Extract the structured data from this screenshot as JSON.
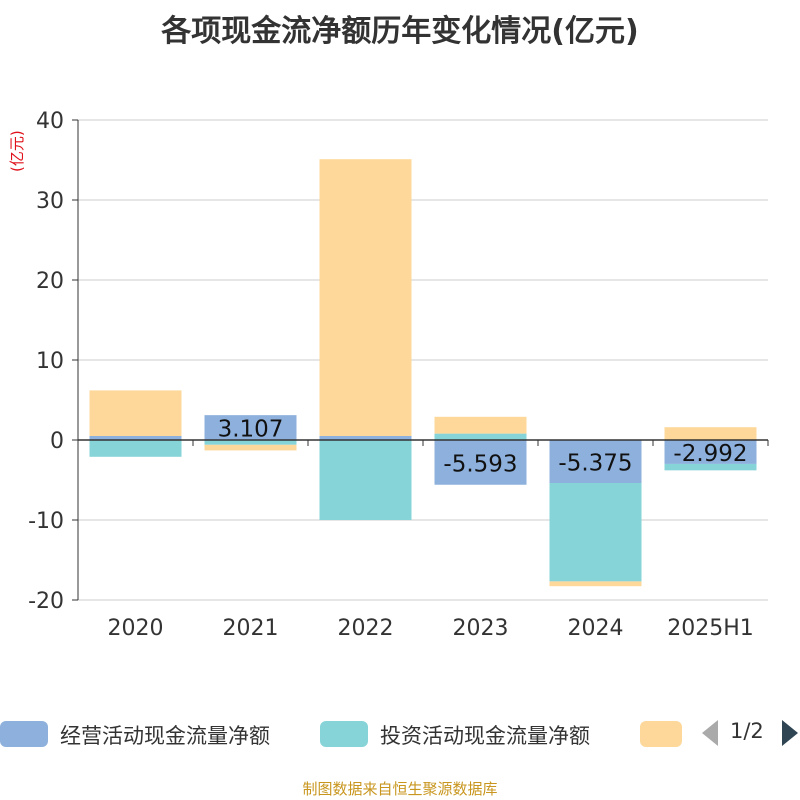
{
  "title": "各项现金流净额历年变化情况(亿元)",
  "unit_label": "(亿元)",
  "source": "制图数据来自恒生聚源数据库",
  "legend": {
    "items": [
      {
        "label": "经营活动现金流量净额",
        "color": "#8eb0dc"
      },
      {
        "label": "投资活动现金流量净额",
        "color": "#86d4d8"
      },
      {
        "label": "",
        "color": "#fdd89a"
      }
    ],
    "page_text": "1/2"
  },
  "chart_data": {
    "type": "bar",
    "stacked": true,
    "categories": [
      "2020",
      "2021",
      "2022",
      "2023",
      "2024",
      "2025H1"
    ],
    "ylim": [
      -20,
      40
    ],
    "yticks": [
      -20,
      -10,
      0,
      10,
      20,
      30,
      40
    ],
    "grid": true,
    "legend_position": "bottom",
    "series": [
      {
        "name": "经营活动现金流量净额",
        "color": "#8eb0dc",
        "values": [
          0.5,
          3.107,
          0.5,
          -5.593,
          -5.375,
          -2.992
        ],
        "labels": [
          "",
          "3.107",
          "",
          "-5.593",
          "-5.375",
          "-2.992"
        ]
      },
      {
        "name": "投资活动现金流量净额",
        "color": "#86d4d8",
        "values": [
          -2.1,
          -0.6,
          -10.0,
          0.8,
          -12.3,
          -0.8
        ],
        "labels": [
          "",
          "",
          "",
          "",
          "",
          ""
        ]
      },
      {
        "color": "#fdd89a",
        "values": [
          5.7,
          -0.7,
          34.6,
          2.1,
          -0.6,
          1.6
        ],
        "labels": [
          "",
          "",
          "",
          "",
          "",
          ""
        ]
      }
    ]
  }
}
